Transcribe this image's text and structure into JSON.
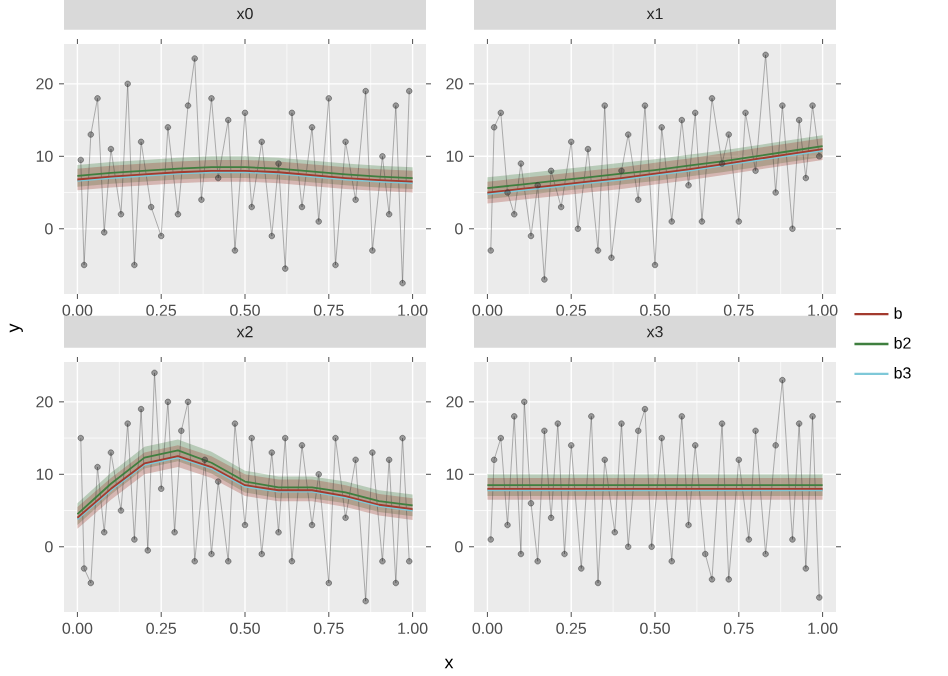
{
  "chart_data": [
    {
      "type": "line",
      "title": "x0",
      "ylabel": "y",
      "xlim": [
        -0.04,
        1.04
      ],
      "ylim": [
        -9,
        25.5
      ],
      "grid": true,
      "xticks": [
        {
          "value": 0,
          "label": "0.00"
        },
        {
          "value": 0.25,
          "label": "0.25"
        },
        {
          "value": 0.5,
          "label": "0.50"
        },
        {
          "value": 0.75,
          "label": "0.75"
        },
        {
          "value": 1,
          "label": "1.00"
        }
      ],
      "yticks": [
        0,
        10,
        20
      ],
      "series": [
        {
          "color": "#333333",
          "marker": "circle",
          "x": [
            0.01,
            0.02,
            0.04,
            0.06,
            0.08,
            0.1,
            0.13,
            0.15,
            0.17,
            0.19,
            0.22,
            0.25,
            0.27,
            0.3,
            0.33,
            0.35,
            0.37,
            0.4,
            0.42,
            0.45,
            0.47,
            0.5,
            0.52,
            0.55,
            0.58,
            0.6,
            0.62,
            0.64,
            0.67,
            0.7,
            0.72,
            0.75,
            0.77,
            0.8,
            0.83,
            0.86,
            0.88,
            0.91,
            0.93,
            0.95,
            0.97,
            0.99
          ],
          "values": [
            9.5,
            -5,
            13,
            18,
            -0.5,
            11,
            2,
            20,
            -5,
            12,
            3,
            -1,
            14,
            2,
            17,
            23.5,
            4,
            18,
            7,
            15,
            -3,
            16,
            3,
            12,
            -1,
            9,
            -5.5,
            16,
            3,
            14,
            1,
            18,
            -5,
            12,
            4,
            19,
            -3,
            10,
            2,
            17,
            -7.5,
            19
          ]
        },
        {
          "color": "#a33a2e",
          "marker": "none",
          "x": [
            0,
            0.1,
            0.2,
            0.3,
            0.4,
            0.5,
            0.6,
            0.7,
            0.8,
            0.9,
            1
          ],
          "values": [
            6.8,
            7.2,
            7.5,
            7.8,
            8.0,
            8.0,
            7.8,
            7.4,
            7.0,
            6.7,
            6.5
          ],
          "lower": [
            5.3,
            5.7,
            6.0,
            6.3,
            6.5,
            6.5,
            6.3,
            5.9,
            5.5,
            5.2,
            5.0
          ],
          "upper": [
            8.3,
            8.7,
            9.0,
            9.3,
            9.5,
            9.5,
            9.3,
            8.9,
            8.5,
            8.2,
            8.0
          ]
        },
        {
          "color": "#3f7f3f",
          "marker": "none",
          "x": [
            0,
            0.1,
            0.2,
            0.3,
            0.4,
            0.5,
            0.6,
            0.7,
            0.8,
            0.9,
            1
          ],
          "values": [
            7.3,
            7.7,
            8.0,
            8.3,
            8.5,
            8.5,
            8.3,
            7.9,
            7.5,
            7.2,
            7.0
          ],
          "lower": [
            5.8,
            6.2,
            6.5,
            6.8,
            7.0,
            7.0,
            6.8,
            6.4,
            6.0,
            5.7,
            5.5
          ],
          "upper": [
            8.8,
            9.2,
            9.5,
            9.8,
            10.0,
            10.0,
            9.8,
            9.4,
            9.0,
            8.7,
            8.5
          ]
        },
        {
          "color": "#7ec8d8",
          "marker": "none",
          "x": [
            0,
            0.1,
            0.2,
            0.3,
            0.4,
            0.5,
            0.6,
            0.7,
            0.8,
            0.9,
            1
          ],
          "values": [
            6.6,
            7.0,
            7.3,
            7.6,
            7.8,
            7.8,
            7.6,
            7.2,
            6.8,
            6.5,
            6.3
          ]
        }
      ]
    },
    {
      "type": "line",
      "title": "x1",
      "legend": "right",
      "xlim": [
        -0.04,
        1.04
      ],
      "ylim": [
        -9,
        25.5
      ],
      "grid": true,
      "xticks": [
        {
          "value": 0,
          "label": "0.00"
        },
        {
          "value": 0.25,
          "label": "0.25"
        },
        {
          "value": 0.5,
          "label": "0.50"
        },
        {
          "value": 0.75,
          "label": "0.75"
        },
        {
          "value": 1,
          "label": "1.00"
        }
      ],
      "yticks": [
        0,
        10,
        20
      ],
      "series": [
        {
          "color": "#333333",
          "marker": "circle",
          "x": [
            0.01,
            0.02,
            0.04,
            0.06,
            0.08,
            0.1,
            0.13,
            0.15,
            0.17,
            0.19,
            0.22,
            0.25,
            0.27,
            0.3,
            0.33,
            0.35,
            0.37,
            0.4,
            0.42,
            0.45,
            0.47,
            0.5,
            0.52,
            0.55,
            0.58,
            0.6,
            0.62,
            0.64,
            0.67,
            0.7,
            0.72,
            0.75,
            0.77,
            0.8,
            0.83,
            0.86,
            0.88,
            0.91,
            0.93,
            0.95,
            0.97,
            0.99
          ],
          "values": [
            -3,
            14,
            16,
            5,
            2,
            9,
            -1,
            6,
            -7,
            8,
            3,
            12,
            0,
            11,
            -3,
            17,
            -4,
            8,
            13,
            4,
            17,
            -5,
            14,
            1,
            15,
            6,
            16,
            1,
            18,
            9,
            13,
            1,
            16,
            8,
            24,
            5,
            17,
            0,
            15,
            7,
            17,
            10
          ]
        },
        {
          "name": "b",
          "color": "#a33a2e",
          "marker": "none",
          "x": [
            0,
            0.1,
            0.2,
            0.3,
            0.4,
            0.5,
            0.6,
            0.7,
            0.8,
            0.9,
            1
          ],
          "values": [
            5.0,
            5.5,
            6.0,
            6.5,
            7.0,
            7.6,
            8.2,
            8.9,
            9.6,
            10.3,
            11.0
          ],
          "lower": [
            3.5,
            4.0,
            4.5,
            5.0,
            5.5,
            6.1,
            6.7,
            7.4,
            8.1,
            8.8,
            9.5
          ],
          "upper": [
            6.5,
            7.0,
            7.5,
            8.0,
            8.5,
            9.1,
            9.7,
            10.4,
            11.1,
            11.8,
            12.5
          ]
        },
        {
          "name": "b2",
          "color": "#3f7f3f",
          "marker": "none",
          "x": [
            0,
            0.1,
            0.2,
            0.3,
            0.4,
            0.5,
            0.6,
            0.7,
            0.8,
            0.9,
            1
          ],
          "values": [
            5.6,
            6.1,
            6.6,
            7.1,
            7.6,
            8.1,
            8.7,
            9.3,
            10.0,
            10.7,
            11.4
          ],
          "lower": [
            4.1,
            4.6,
            5.1,
            5.6,
            6.1,
            6.6,
            7.2,
            7.8,
            8.5,
            9.2,
            9.9
          ],
          "upper": [
            7.1,
            7.6,
            8.1,
            8.6,
            9.1,
            9.6,
            10.2,
            10.8,
            11.5,
            12.2,
            12.9
          ]
        },
        {
          "name": "b3",
          "color": "#7ec8d8",
          "marker": "none",
          "x": [
            0,
            0.1,
            0.2,
            0.3,
            0.4,
            0.5,
            0.6,
            0.7,
            0.8,
            0.9,
            1
          ],
          "values": [
            4.8,
            5.3,
            5.8,
            6.3,
            6.8,
            7.4,
            8.0,
            8.7,
            9.4,
            10.1,
            10.8
          ]
        }
      ]
    },
    {
      "type": "line",
      "title": "x2",
      "xlabel": "x",
      "xlim": [
        -0.04,
        1.04
      ],
      "ylim": [
        -9,
        25.5
      ],
      "grid": true,
      "xticks": [
        {
          "value": 0,
          "label": "0.00"
        },
        {
          "value": 0.25,
          "label": "0.25"
        },
        {
          "value": 0.5,
          "label": "0.50"
        },
        {
          "value": 0.75,
          "label": "0.75"
        },
        {
          "value": 1,
          "label": "1.00"
        }
      ],
      "yticks": [
        0,
        10,
        20
      ],
      "series": [
        {
          "color": "#333333",
          "marker": "circle",
          "x": [
            0.01,
            0.02,
            0.04,
            0.06,
            0.08,
            0.1,
            0.13,
            0.15,
            0.17,
            0.19,
            0.21,
            0.23,
            0.25,
            0.27,
            0.29,
            0.31,
            0.33,
            0.35,
            0.38,
            0.4,
            0.42,
            0.45,
            0.47,
            0.5,
            0.52,
            0.55,
            0.58,
            0.6,
            0.62,
            0.64,
            0.67,
            0.7,
            0.72,
            0.75,
            0.77,
            0.8,
            0.83,
            0.86,
            0.88,
            0.91,
            0.93,
            0.95,
            0.97,
            0.99
          ],
          "values": [
            15,
            -3,
            -5,
            11,
            2,
            13,
            5,
            17,
            1,
            19,
            -0.5,
            24,
            8,
            20,
            2,
            16,
            20,
            -2,
            12,
            -1,
            9,
            -2,
            17,
            3,
            15,
            -1,
            13,
            2,
            15,
            -2,
            14,
            3,
            10,
            -5,
            15,
            4,
            12,
            -7.5,
            13,
            -2,
            12,
            -5,
            15,
            -2
          ]
        },
        {
          "color": "#a33a2e",
          "marker": "none",
          "x": [
            0,
            0.1,
            0.2,
            0.3,
            0.4,
            0.5,
            0.6,
            0.7,
            0.8,
            0.9,
            1
          ],
          "values": [
            4.0,
            8.0,
            11.5,
            12.5,
            11.0,
            8.5,
            7.8,
            7.8,
            7.0,
            5.8,
            5.2
          ],
          "lower": [
            2.5,
            6.5,
            10.0,
            11.0,
            9.5,
            7.0,
            6.3,
            6.3,
            5.5,
            4.3,
            3.7
          ],
          "upper": [
            5.5,
            9.5,
            13.0,
            14.0,
            12.5,
            10.0,
            9.3,
            9.3,
            8.5,
            7.3,
            6.7
          ]
        },
        {
          "color": "#3f7f3f",
          "marker": "none",
          "x": [
            0,
            0.1,
            0.2,
            0.3,
            0.4,
            0.5,
            0.6,
            0.7,
            0.8,
            0.9,
            1
          ],
          "values": [
            4.5,
            8.7,
            12.3,
            13.3,
            11.6,
            9.0,
            8.2,
            8.2,
            7.5,
            6.3,
            5.7
          ],
          "lower": [
            3.0,
            7.2,
            10.8,
            11.8,
            10.1,
            7.5,
            6.7,
            6.7,
            6.0,
            4.8,
            4.2
          ],
          "upper": [
            6.0,
            10.2,
            13.8,
            14.8,
            13.1,
            10.5,
            9.7,
            9.7,
            9.0,
            7.8,
            7.2
          ]
        },
        {
          "color": "#7ec8d8",
          "marker": "none",
          "x": [
            0,
            0.1,
            0.2,
            0.3,
            0.4,
            0.5,
            0.6,
            0.7,
            0.8,
            0.9,
            1
          ],
          "values": [
            3.8,
            7.8,
            11.3,
            12.3,
            10.8,
            8.3,
            7.6,
            7.6,
            6.8,
            5.6,
            5.0
          ]
        }
      ]
    },
    {
      "type": "line",
      "title": "x3",
      "xlim": [
        -0.04,
        1.04
      ],
      "ylim": [
        -9,
        25.5
      ],
      "grid": true,
      "xticks": [
        {
          "value": 0,
          "label": "0.00"
        },
        {
          "value": 0.25,
          "label": "0.25"
        },
        {
          "value": 0.5,
          "label": "0.50"
        },
        {
          "value": 0.75,
          "label": "0.75"
        },
        {
          "value": 1,
          "label": "1.00"
        }
      ],
      "yticks": [
        0,
        10,
        20
      ],
      "series": [
        {
          "color": "#333333",
          "marker": "circle",
          "x": [
            0.01,
            0.02,
            0.04,
            0.06,
            0.08,
            0.1,
            0.11,
            0.13,
            0.15,
            0.17,
            0.19,
            0.21,
            0.23,
            0.25,
            0.28,
            0.31,
            0.33,
            0.35,
            0.38,
            0.4,
            0.42,
            0.45,
            0.47,
            0.49,
            0.52,
            0.55,
            0.58,
            0.6,
            0.62,
            0.65,
            0.67,
            0.7,
            0.72,
            0.75,
            0.78,
            0.8,
            0.83,
            0.86,
            0.88,
            0.91,
            0.93,
            0.95,
            0.97,
            0.99
          ],
          "values": [
            1,
            12,
            15,
            3,
            18,
            -1,
            20,
            6,
            -2,
            16,
            4,
            17,
            -1,
            14,
            -3,
            18,
            -5,
            12,
            2,
            17,
            0,
            16,
            19,
            0,
            15,
            -2,
            18,
            3,
            14,
            -1,
            -4.5,
            17,
            -4.5,
            12,
            1,
            16,
            -1,
            14,
            23,
            1,
            17,
            -3,
            18,
            -7
          ]
        },
        {
          "color": "#a33a2e",
          "marker": "none",
          "x": [
            0,
            0.1,
            0.2,
            0.3,
            0.4,
            0.5,
            0.6,
            0.7,
            0.8,
            0.9,
            1
          ],
          "values": [
            8,
            8,
            8,
            8,
            8,
            8,
            8,
            8,
            8,
            8,
            8
          ],
          "lower": [
            6.5,
            6.5,
            6.5,
            6.5,
            6.5,
            6.5,
            6.5,
            6.5,
            6.5,
            6.5,
            6.5
          ],
          "upper": [
            9.5,
            9.5,
            9.5,
            9.5,
            9.5,
            9.5,
            9.5,
            9.5,
            9.5,
            9.5,
            9.5
          ]
        },
        {
          "color": "#3f7f3f",
          "marker": "none",
          "x": [
            0,
            0.1,
            0.2,
            0.3,
            0.4,
            0.5,
            0.6,
            0.7,
            0.8,
            0.9,
            1
          ],
          "values": [
            8.5,
            8.5,
            8.5,
            8.5,
            8.5,
            8.5,
            8.5,
            8.5,
            8.5,
            8.5,
            8.5
          ],
          "lower": [
            7,
            7,
            7,
            7,
            7,
            7,
            7,
            7,
            7,
            7,
            7
          ],
          "upper": [
            10,
            10,
            10,
            10,
            10,
            10,
            10,
            10,
            10,
            10,
            10
          ]
        },
        {
          "color": "#7ec8d8",
          "marker": "none",
          "x": [
            0,
            0.1,
            0.2,
            0.3,
            0.4,
            0.5,
            0.6,
            0.7,
            0.8,
            0.9,
            1
          ],
          "values": [
            7.8,
            7.8,
            7.8,
            7.8,
            7.8,
            7.8,
            7.8,
            7.8,
            7.8,
            7.8,
            7.8
          ]
        }
      ]
    }
  ]
}
